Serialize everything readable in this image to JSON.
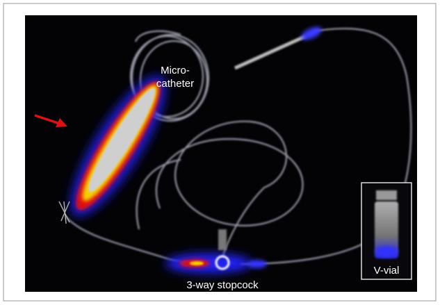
{
  "labels": {
    "microcatheter": [
      "Micro-",
      "catheter"
    ],
    "stopcock": "3-way stopcock",
    "vial": "V-vial"
  }
}
